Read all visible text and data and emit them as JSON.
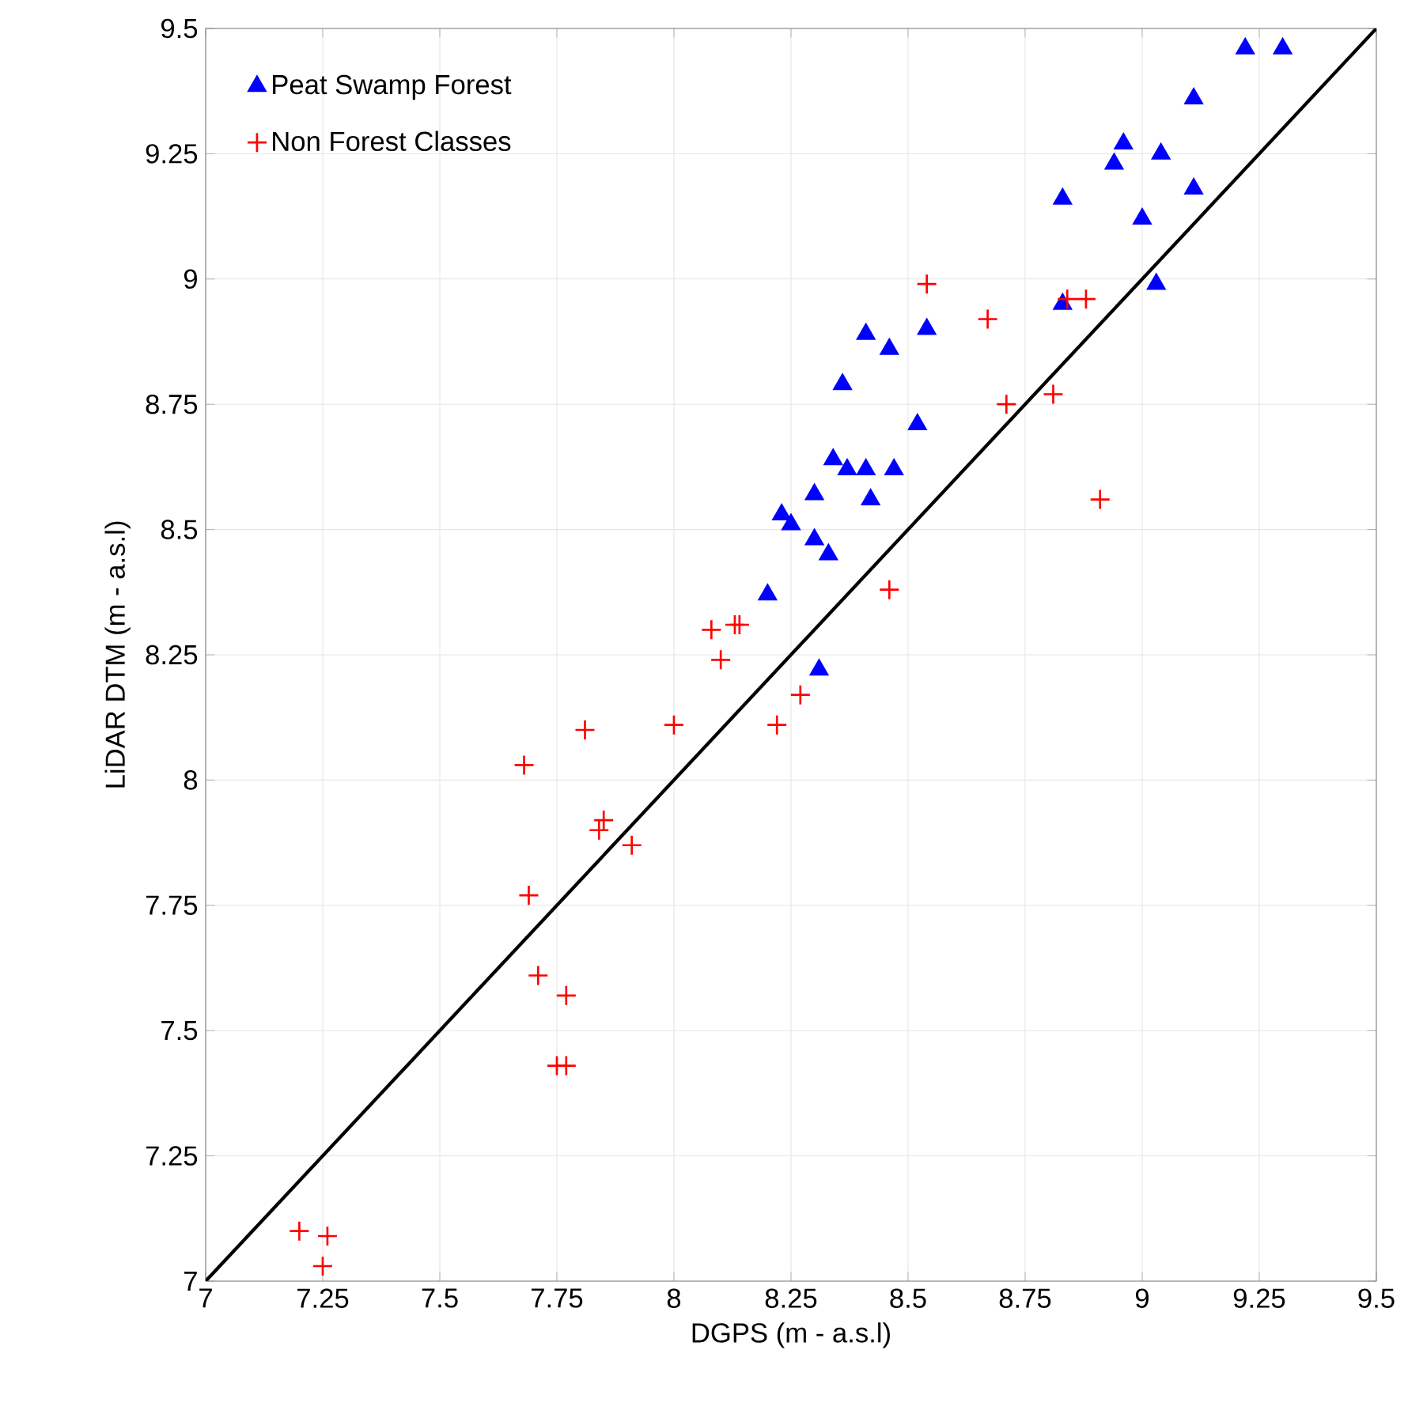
{
  "chart_data": {
    "type": "scatter",
    "xlabel": "DGPS (m - a.s.l)",
    "ylabel": "LiDAR DTM (m - a.s.l)",
    "xlim": [
      7,
      9.5
    ],
    "ylim": [
      7,
      9.5
    ],
    "xticks": [
      7,
      7.25,
      7.5,
      7.75,
      8,
      8.25,
      8.5,
      8.75,
      9,
      9.25,
      9.5
    ],
    "yticks": [
      7,
      7.25,
      7.5,
      7.75,
      8,
      8.25,
      8.5,
      8.75,
      9,
      9.25,
      9.5
    ],
    "grid": true,
    "legend": "top left",
    "series": [
      {
        "name": "Peat Swamp Forest",
        "color": "#0000ff",
        "marker": "triangle",
        "x": [
          9.3,
          9.22,
          9.11,
          8.96,
          9.04,
          8.94,
          9.11,
          9.0,
          8.83,
          9.03,
          8.83,
          8.41,
          8.54,
          8.36,
          8.46,
          8.52,
          8.34,
          8.37,
          8.41,
          8.47,
          8.42,
          8.3,
          8.23,
          8.25,
          8.3,
          8.33,
          8.2,
          8.31
        ],
        "values": [
          9.46,
          9.46,
          9.36,
          9.27,
          9.25,
          9.23,
          9.18,
          9.12,
          9.16,
          8.99,
          8.95,
          8.89,
          8.9,
          8.79,
          8.86,
          8.71,
          8.64,
          8.62,
          8.62,
          8.62,
          8.56,
          8.57,
          8.53,
          8.51,
          8.48,
          8.45,
          8.37,
          8.22
        ]
      },
      {
        "name": "Non Forest Classes",
        "color": "#ff0000",
        "marker": "cross",
        "x": [
          8.54,
          8.67,
          8.84,
          8.88,
          8.71,
          8.81,
          8.91,
          8.46,
          8.13,
          8.14,
          8.08,
          8.1,
          8.27,
          8.22,
          8.0,
          7.81,
          7.68,
          7.85,
          7.84,
          7.91,
          7.69,
          7.71,
          7.77,
          7.75,
          7.77,
          7.2,
          7.26,
          7.25
        ],
        "values": [
          8.99,
          8.92,
          8.96,
          8.96,
          8.75,
          8.77,
          8.56,
          8.38,
          8.31,
          8.31,
          8.3,
          8.24,
          8.17,
          8.11,
          8.11,
          8.1,
          8.03,
          7.92,
          7.9,
          7.87,
          7.77,
          7.61,
          7.57,
          7.43,
          7.43,
          7.1,
          7.09,
          7.03
        ]
      },
      {
        "type": "line",
        "color": "#000000",
        "marker": "none",
        "x": [
          7,
          9.5
        ],
        "values": [
          7,
          9.5
        ]
      }
    ]
  }
}
